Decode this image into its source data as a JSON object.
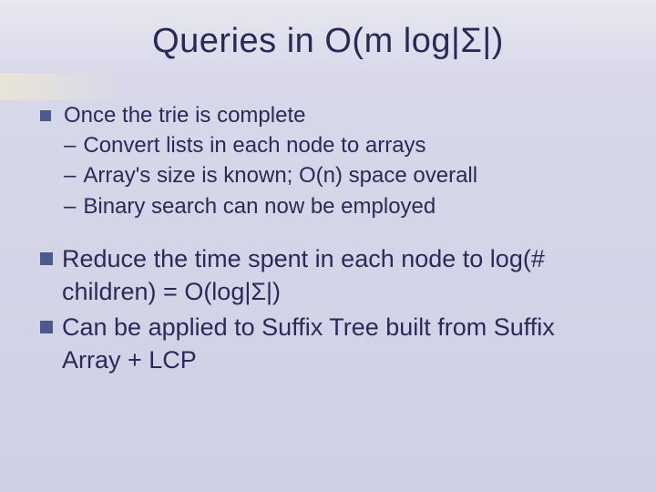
{
  "slide": {
    "title": "Queries in O(m log|Σ|)",
    "group1": {
      "lead": "Once the trie is complete",
      "subs": [
        "Convert lists in each node to arrays",
        "Array's size is known; O(n) space overall",
        "Binary search can now be employed"
      ]
    },
    "group2": [
      "Reduce the time spent in each node to log(# children) = O(log|Σ|)",
      "Can be applied to Suffix Tree built from Suffix Array + LCP"
    ],
    "colors": {
      "bullet": "#4a5a8a",
      "text": "#2a2a5a",
      "bg_top": "#e8e8f0",
      "bg_bottom": "#d0d0e5"
    },
    "fonts": {
      "title_size_pt": 38,
      "body_size_pt": 24,
      "body_large_pt": 27,
      "family": "Verdana"
    }
  }
}
